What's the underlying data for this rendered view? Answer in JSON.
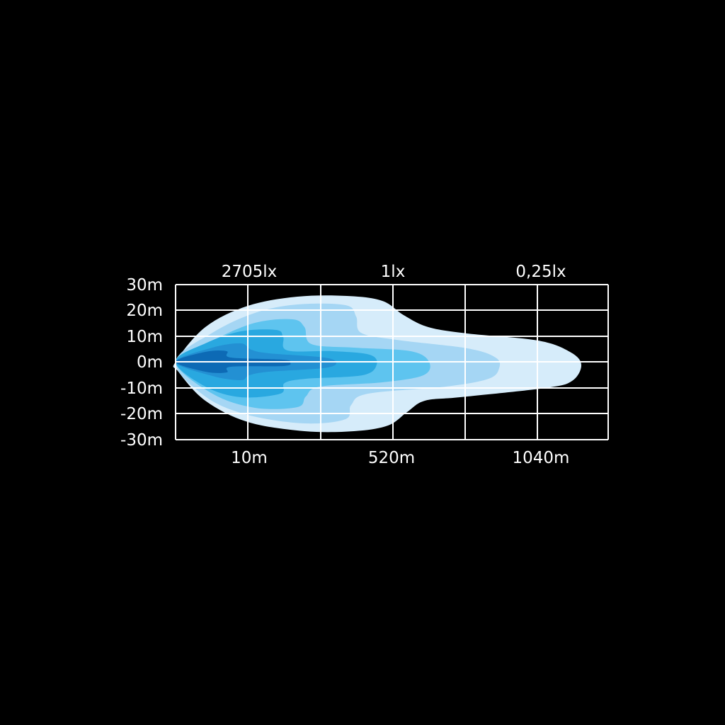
{
  "chart_data": {
    "type": "heatmap",
    "title": "",
    "lux_labels": [
      "2705lx",
      "1lx",
      "0,25lx"
    ],
    "x_tick_labels": [
      "10m",
      "520m",
      "1040m"
    ],
    "y_tick_labels": [
      "30m",
      "20m",
      "10m",
      "0m",
      "-10m",
      "-20m",
      "-30m"
    ],
    "ylim": [
      -30,
      30
    ],
    "grid": true,
    "background_color": "#000000",
    "grid_color": "#ffffff",
    "contour_colors": [
      "#d6ecfa",
      "#a5d6f4",
      "#5ec4ef",
      "#29a8e0",
      "#2390d3",
      "#0d6ab5"
    ]
  }
}
